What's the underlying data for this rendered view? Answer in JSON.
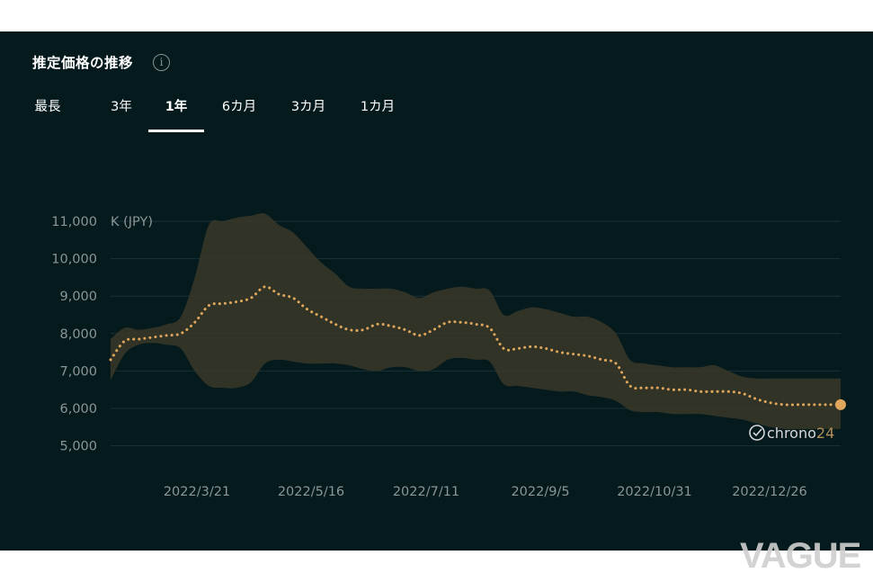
{
  "header": {
    "title": "推定価格の推移",
    "info_icon": "info-icon",
    "info_glyph": "i"
  },
  "tabs": [
    {
      "label": "最長",
      "active": false
    },
    {
      "label": "3年",
      "active": false
    },
    {
      "label": "1年",
      "active": true
    },
    {
      "label": "6カ月",
      "active": false
    },
    {
      "label": "3カ月",
      "active": false
    },
    {
      "label": "1カ月",
      "active": false
    }
  ],
  "chart_data": {
    "type": "line",
    "unit_label": "K (JPY)",
    "ylim": [
      5000,
      11000
    ],
    "yticks": [
      "5,000",
      "6,000",
      "7,000",
      "8,000",
      "9,000",
      "10,000",
      "11,000"
    ],
    "xticks": [
      "2022/3/21",
      "2022/5/16",
      "2022/7/11",
      "2022/9/5",
      "2022/10/31",
      "2022/12/26"
    ],
    "x": [
      "2022/1/17",
      "2022/1/24",
      "2022/1/31",
      "2022/2/7",
      "2022/2/14",
      "2022/2/21",
      "2022/2/28",
      "2022/3/7",
      "2022/3/14",
      "2022/3/21",
      "2022/3/28",
      "2022/4/4",
      "2022/4/11",
      "2022/4/18",
      "2022/4/25",
      "2022/5/2",
      "2022/5/9",
      "2022/5/16",
      "2022/5/23",
      "2022/5/30",
      "2022/6/6",
      "2022/6/13",
      "2022/6/20",
      "2022/6/27",
      "2022/7/4",
      "2022/7/11",
      "2022/7/18",
      "2022/7/25",
      "2022/8/1",
      "2022/8/8",
      "2022/8/15",
      "2022/8/22",
      "2022/8/29",
      "2022/9/5",
      "2022/9/12",
      "2022/9/19",
      "2022/9/26",
      "2022/10/3",
      "2022/10/10",
      "2022/10/17",
      "2022/10/24",
      "2022/10/31",
      "2022/11/7",
      "2022/11/14",
      "2022/11/21",
      "2022/11/28",
      "2022/12/5",
      "2022/12/12",
      "2022/12/19",
      "2022/12/26",
      "2022/1/2",
      "2022/1/9",
      "2022/1/16"
    ],
    "series": [
      {
        "values": [
          7300,
          7800,
          7850,
          7900,
          7950,
          8000,
          8300,
          8750,
          8800,
          8850,
          8950,
          9250,
          9050,
          8950,
          8650,
          8450,
          8250,
          8100,
          8100,
          8250,
          8200,
          8100,
          7950,
          8100,
          8300,
          8300,
          8250,
          8150,
          7600,
          7600,
          7650,
          7600,
          7500,
          7450,
          7400,
          7300,
          7200,
          6600,
          6550,
          6550,
          6500,
          6500,
          6450,
          6450,
          6450,
          6400,
          6250,
          6150,
          6100,
          6100,
          6100,
          6100,
          6100
        ]
      },
      {
        "values": [
          7850,
          8150,
          8100,
          8150,
          8250,
          8450,
          9500,
          10900,
          11000,
          11100,
          11150,
          11200,
          10900,
          10700,
          10300,
          9900,
          9600,
          9250,
          9200,
          9200,
          9200,
          9100,
          8950,
          9100,
          9200,
          9250,
          9200,
          9150,
          8500,
          8600,
          8700,
          8650,
          8550,
          8450,
          8450,
          8300,
          8000,
          7300,
          7200,
          7150,
          7100,
          7100,
          7100,
          7150,
          7000,
          6850,
          6800,
          6800,
          6800,
          6800,
          6800,
          6800,
          6800
        ]
      },
      {
        "values": [
          6750,
          7450,
          7700,
          7750,
          7700,
          7600,
          7000,
          6600,
          6550,
          6550,
          6700,
          7200,
          7300,
          7250,
          7200,
          7200,
          7200,
          7150,
          7050,
          7000,
          7100,
          7100,
          7000,
          7050,
          7300,
          7350,
          7300,
          7250,
          6650,
          6600,
          6550,
          6500,
          6450,
          6450,
          6350,
          6300,
          6200,
          5950,
          5900,
          5900,
          5850,
          5850,
          5850,
          5800,
          5750,
          5700,
          5600,
          5500,
          5450,
          5450,
          5450,
          5450,
          5450
        ]
      }
    ],
    "line_color": "#e0a75c",
    "band_color": "#3a3828",
    "grid": true
  },
  "brand": {
    "text": "chrono24",
    "icon": "chrono24-clock-icon"
  },
  "watermark": {
    "text": "VAGUE"
  }
}
